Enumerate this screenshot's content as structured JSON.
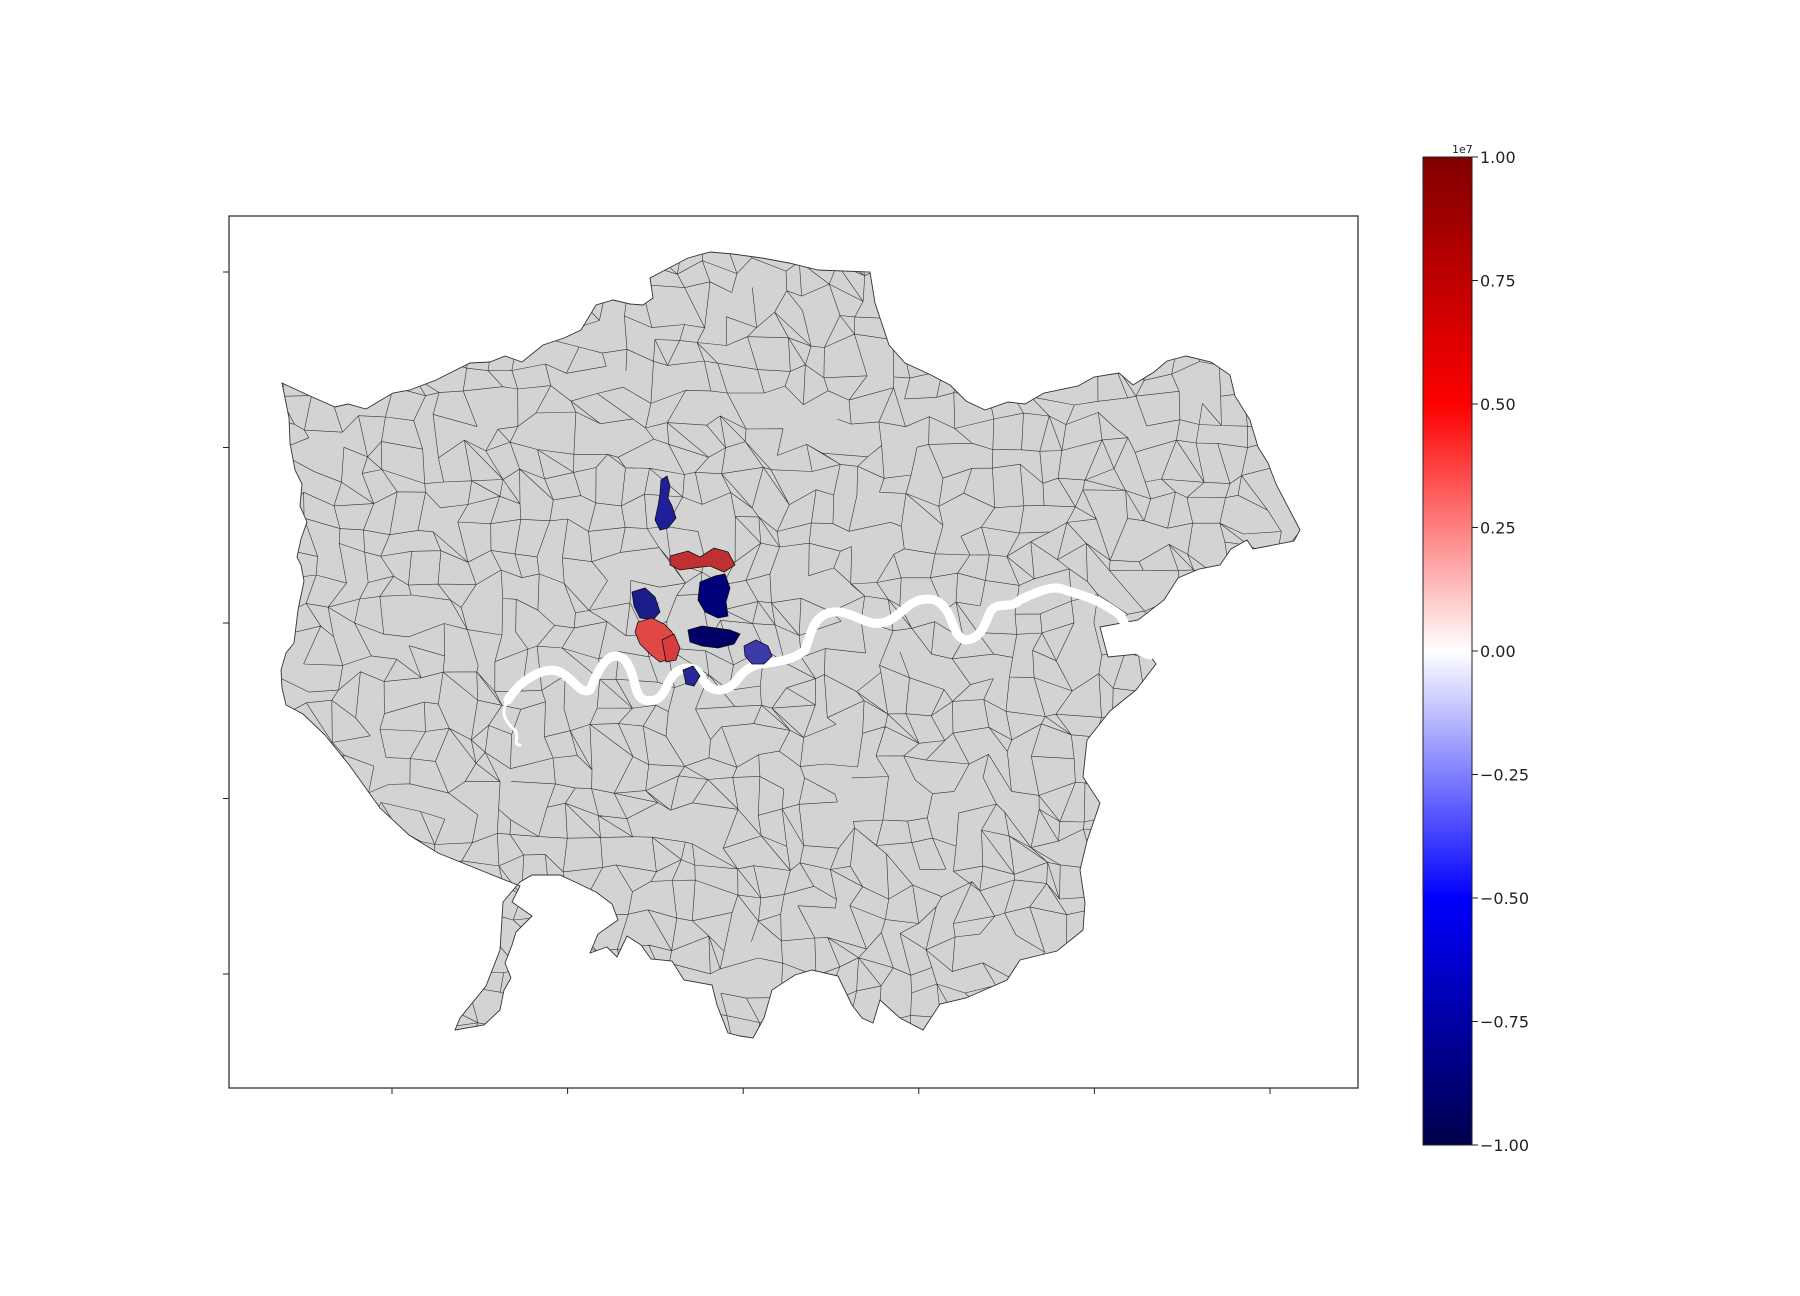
{
  "map": {
    "axes_frame": true,
    "x_ticks_count": 6,
    "y_ticks_count": 5,
    "tick_labels_visible": false,
    "base_fill_color": "#d3d3d3",
    "boundary_color": "#333333",
    "river_color": "#ffffff"
  },
  "colorbar": {
    "colormap": "seismic",
    "range": [
      -1.0,
      1.0
    ],
    "offset_text": "1e7",
    "ticks": [
      {
        "value": 1.0,
        "label": "1.00"
      },
      {
        "value": 0.75,
        "label": "0.75"
      },
      {
        "value": 0.5,
        "label": "0.50"
      },
      {
        "value": 0.25,
        "label": "0.25"
      },
      {
        "value": 0.0,
        "label": "0.00"
      },
      {
        "value": -0.25,
        "label": "−0.25"
      },
      {
        "value": -0.5,
        "label": "−0.50"
      },
      {
        "value": -0.75,
        "label": "−0.75"
      },
      {
        "value": -1.0,
        "label": "−1.00"
      }
    ],
    "stops": [
      {
        "value": 1.0,
        "color": "#800000"
      },
      {
        "value": 0.5,
        "color": "#fd0000"
      },
      {
        "value": 0.0,
        "color": "#ffffff"
      },
      {
        "value": -0.5,
        "color": "#0000fd"
      },
      {
        "value": -1.0,
        "color": "#00004c"
      }
    ]
  }
}
